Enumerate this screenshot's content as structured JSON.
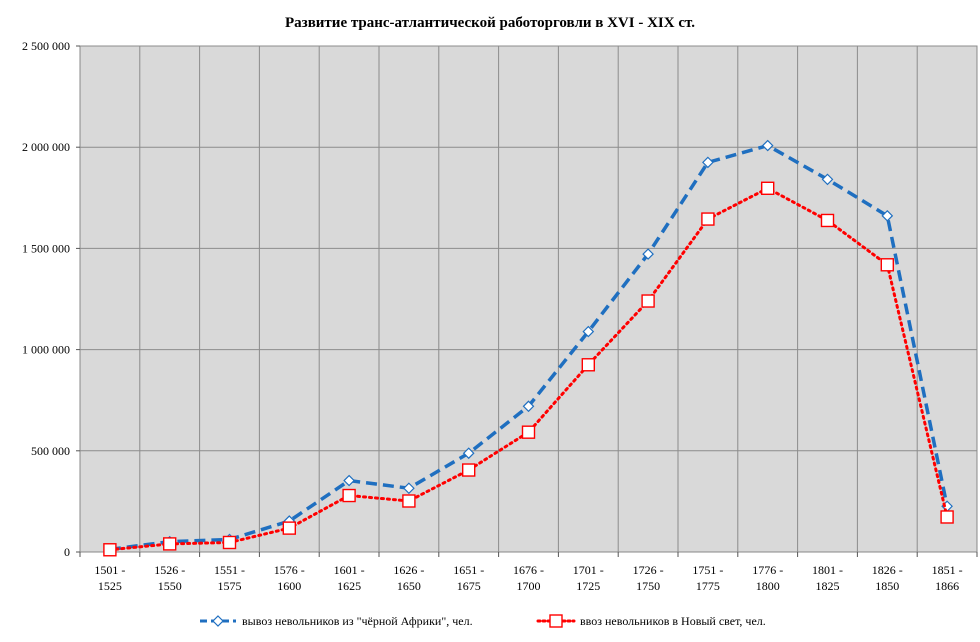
{
  "chart_data": {
    "type": "line",
    "title": "Развитие транс-атлантической работорговли в XVI - XIX ст.",
    "xlabel": "",
    "ylabel": "",
    "ylim": [
      0,
      2500000
    ],
    "yticks": [
      0,
      500000,
      1000000,
      1500000,
      2000000,
      2500000
    ],
    "ytick_labels": [
      "0",
      "500 000",
      "1 000 000",
      "1 500 000",
      "2 000 000",
      "2 500 000"
    ],
    "grid": true,
    "legend_position": "bottom",
    "categories": [
      [
        "1501 -",
        "1525"
      ],
      [
        "1526 -",
        "1550"
      ],
      [
        "1551 -",
        "1575"
      ],
      [
        "1576 -",
        "1600"
      ],
      [
        "1601 -",
        "1625"
      ],
      [
        "1626 -",
        "1650"
      ],
      [
        "1651 -",
        "1675"
      ],
      [
        "1676 -",
        "1700"
      ],
      [
        "1701 -",
        "1725"
      ],
      [
        "1726 -",
        "1750"
      ],
      [
        "1751 -",
        "1775"
      ],
      [
        "1776 -",
        "1800"
      ],
      [
        "1801 -",
        "1825"
      ],
      [
        "1826 -",
        "1850"
      ],
      [
        "1851 -",
        "1866"
      ]
    ],
    "series": [
      {
        "name": "вывоз невольников из \"чёрной Африки\",  чел.",
        "color": "#1f6fc0",
        "line_style": "dashed",
        "marker": "diamond",
        "values": [
          13000,
          51000,
          62000,
          153000,
          353000,
          315000,
          488000,
          720000,
          1089000,
          1472000,
          1925000,
          2008000,
          1841000,
          1661000,
          226000
        ]
      },
      {
        "name": "ввоз невольников в Новый свет, чел.",
        "color": "#ff0000",
        "line_style": "dotted",
        "marker": "square",
        "values": [
          11000,
          40000,
          47000,
          118000,
          279000,
          252000,
          405000,
          592000,
          925000,
          1240000,
          1645000,
          1797000,
          1638000,
          1419000,
          173000
        ]
      }
    ]
  }
}
